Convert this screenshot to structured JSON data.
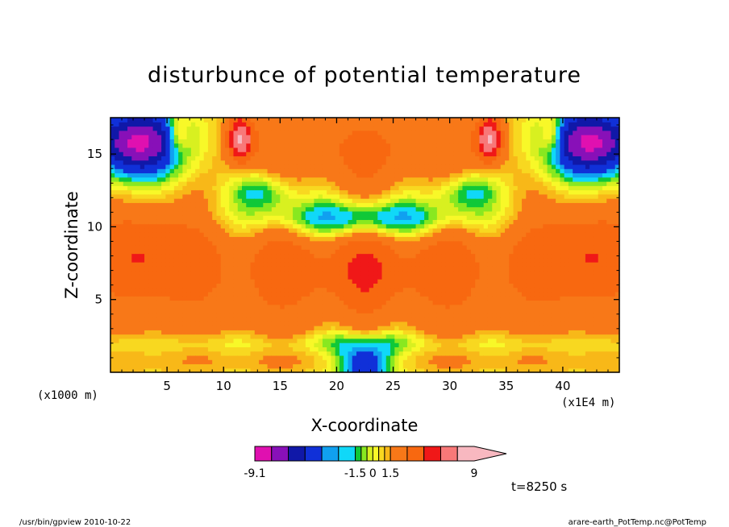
{
  "chart_data": {
    "type": "heatmap",
    "title": "disturbunce of potential temperature",
    "xlabel": "X-coordinate",
    "ylabel": "Z-coordinate",
    "x_unit": "(x1E4 m)",
    "y_unit": "(x1000 m)",
    "xlim": [
      0,
      45
    ],
    "ylim": [
      0,
      17.5
    ],
    "x_ticks": [
      5,
      10,
      15,
      20,
      25,
      30,
      35,
      40
    ],
    "x_tick_labels": [
      "5",
      "10",
      "15",
      "20",
      "25",
      "30",
      "35",
      "40"
    ],
    "y_ticks": [
      5,
      10,
      15
    ],
    "y_tick_labels": [
      "5",
      "10",
      "15"
    ],
    "time_label": "t=8250 s",
    "colorbar": {
      "tick_labels": [
        {
          "label": "-9.1",
          "value": -9.1
        },
        {
          "label": "-1.5",
          "value": -1.5
        },
        {
          "label": "0",
          "value": 0
        },
        {
          "label": "1.5",
          "value": 1.5
        },
        {
          "label": "9",
          "value": 9
        }
      ],
      "levels": [
        -9.1,
        -7.5,
        -6,
        -4.5,
        -3,
        -2.25,
        -1.5,
        -1,
        -0.5,
        0,
        0.5,
        1,
        1.5,
        3,
        4.5,
        6,
        7.5,
        9
      ],
      "colors": [
        "#e010b0",
        "#8810b8",
        "#1018a8",
        "#1030d8",
        "#10a0f0",
        "#10d8f8",
        "#10c838",
        "#88e820",
        "#d8f020",
        "#f8f828",
        "#f8d820",
        "#f8b818",
        "#f87818",
        "#f86810",
        "#f01818",
        "#f87878",
        "#f8b8c0"
      ]
    }
  },
  "footer": {
    "left": "/usr/bin/gpview   2010-10-22",
    "right": "arare-earth_PotTemp.nc@PotTemp"
  }
}
